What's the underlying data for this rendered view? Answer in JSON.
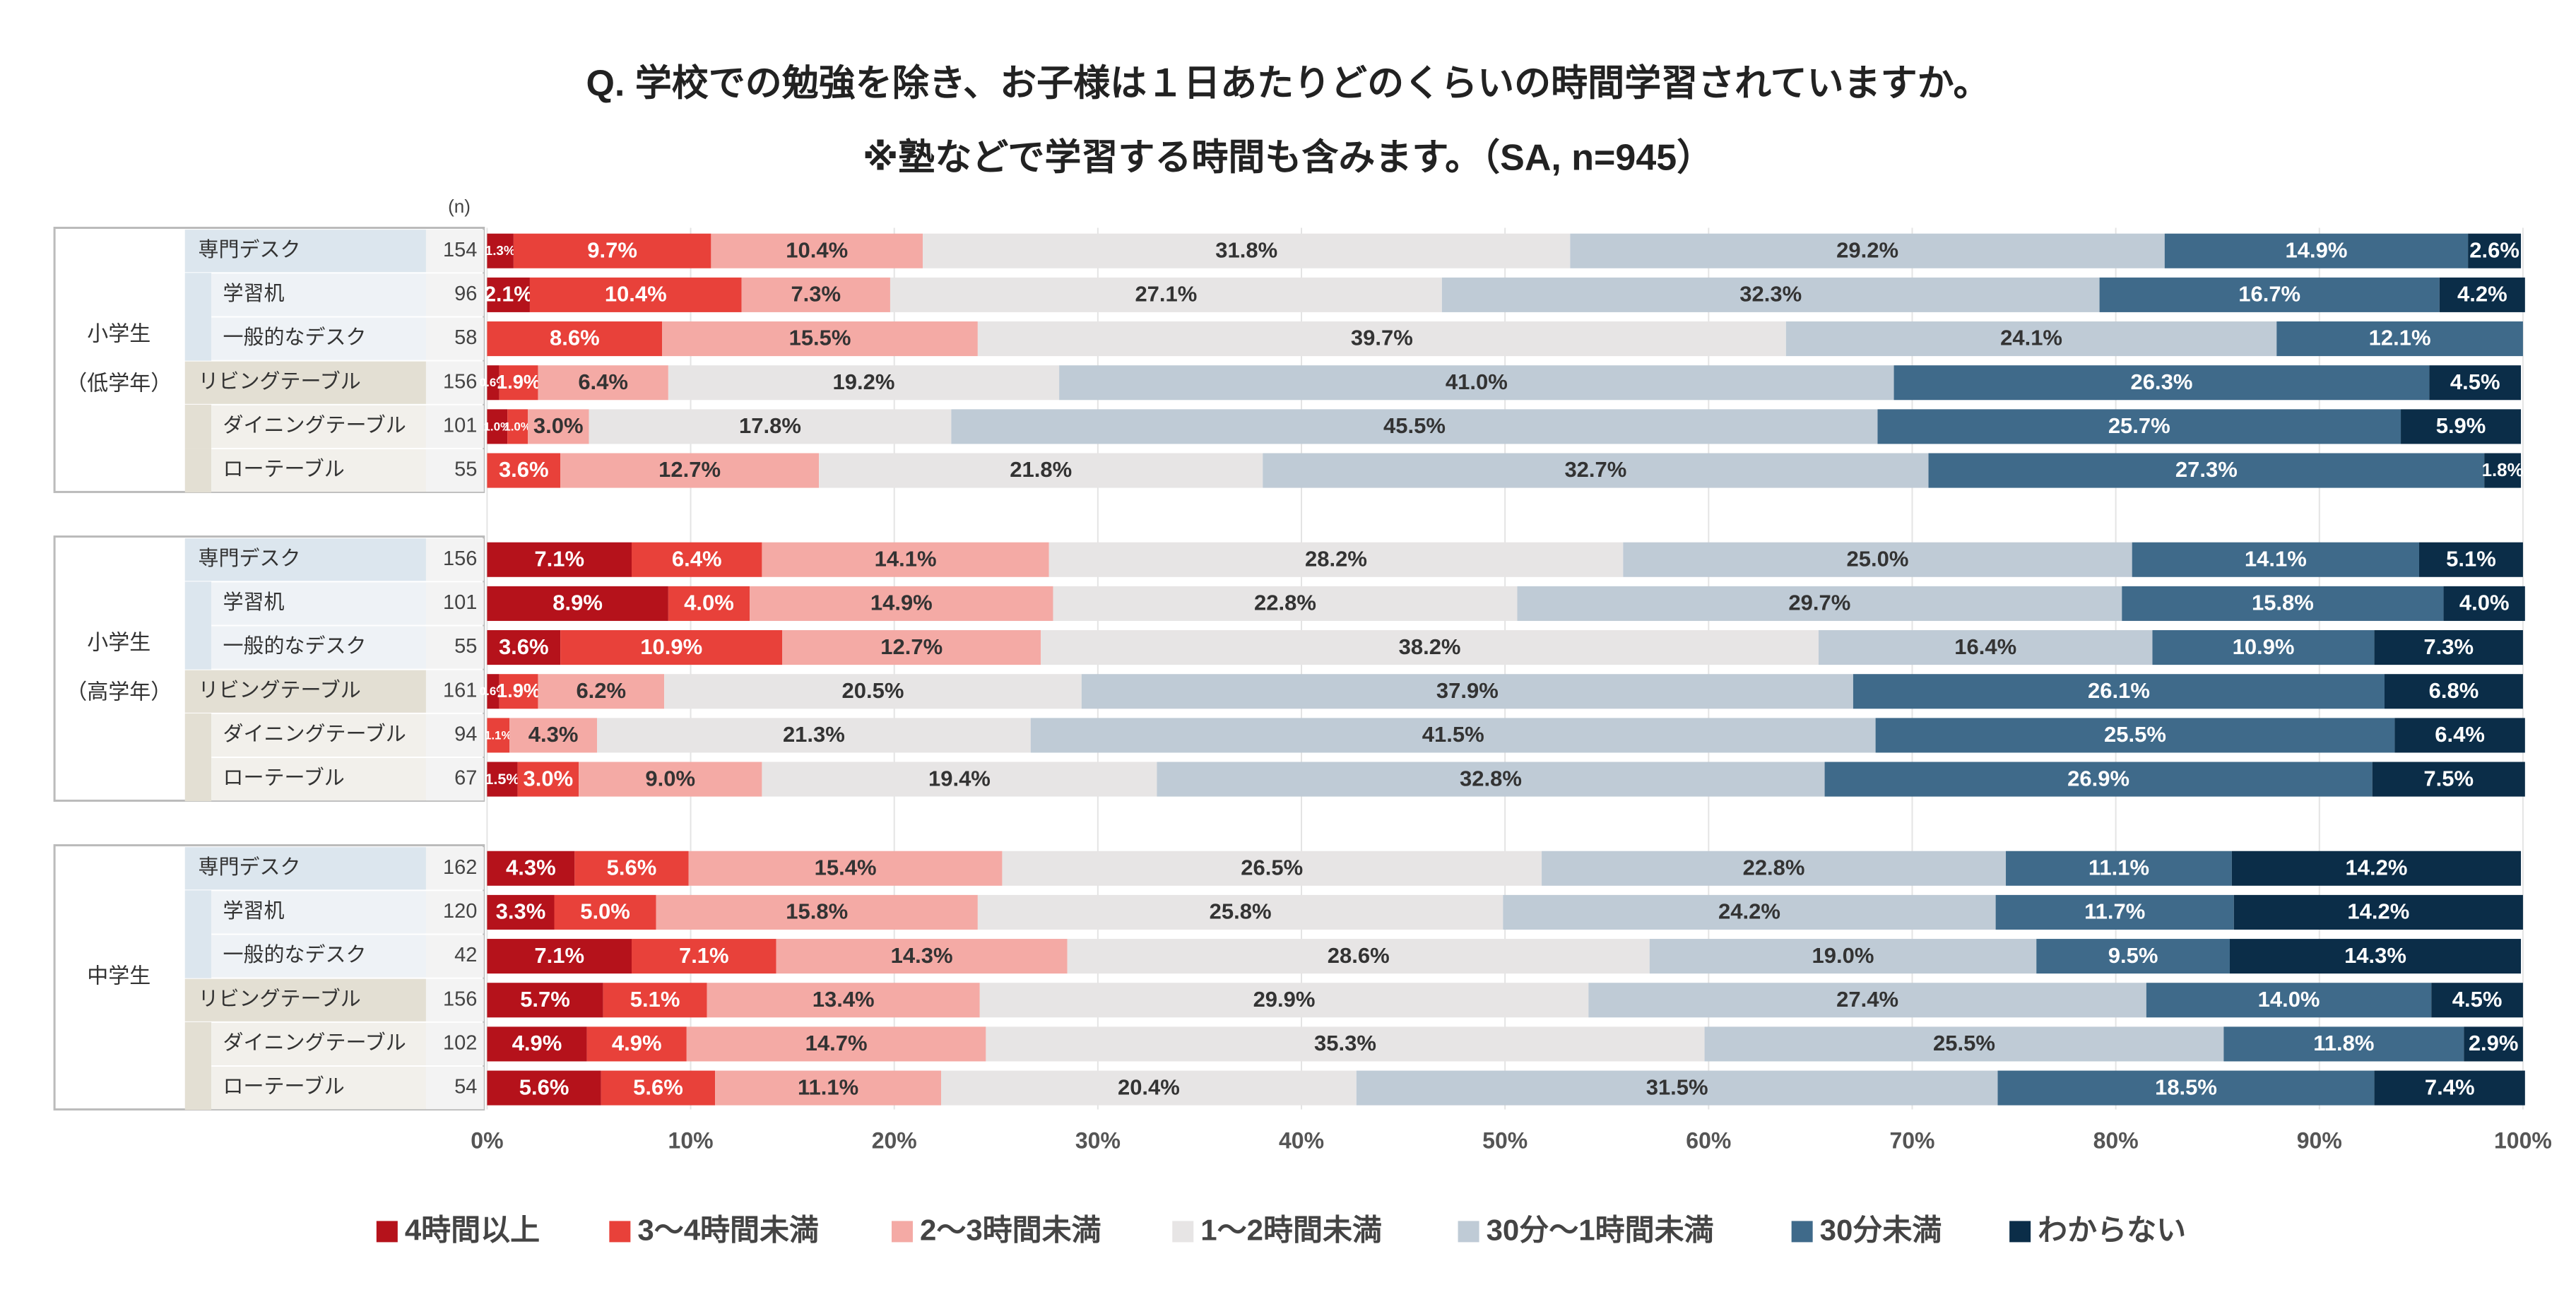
{
  "chart_data": {
    "type": "stacked_bar_horizontal",
    "title": "Q. 学校での勉強を除き、お子様は１日あたりどのくらいの時間学習されていますか。",
    "subtitle": "※塾などで学習する時間も含みます。（SA, n=945）",
    "n_header": "(n)",
    "groups": [
      {
        "label": [
          "小学生",
          "（低学年）"
        ],
        "categories": [
          "専門デスク",
          "学習机",
          "一般的なデスク",
          "リビングテーブル",
          "ダイニングテーブル",
          "ローテーブル"
        ],
        "n": [
          154,
          96,
          58,
          156,
          101,
          55
        ]
      },
      {
        "label": [
          "小学生",
          "（高学年）"
        ],
        "categories": [
          "専門デスク",
          "学習机",
          "一般的なデスク",
          "リビングテーブル",
          "ダイニングテーブル",
          "ローテーブル"
        ],
        "n": [
          156,
          101,
          55,
          161,
          94,
          67
        ]
      },
      {
        "label": [
          "中学生"
        ],
        "categories": [
          "専門デスク",
          "学習机",
          "一般的なデスク",
          "リビングテーブル",
          "ダイニングテーブル",
          "ローテーブル"
        ],
        "n": [
          162,
          120,
          42,
          156,
          102,
          54
        ]
      }
    ],
    "series": [
      {
        "name": "4時間以上",
        "color": "#b5121b",
        "values": [
          1.3,
          2.1,
          0,
          0.6,
          1.0,
          0,
          7.1,
          8.9,
          3.6,
          0.6,
          0,
          1.5,
          4.3,
          3.3,
          7.1,
          5.7,
          4.9,
          5.6
        ],
        "value_labels": [
          "1.3%",
          "2.1%",
          null,
          "0.6%",
          "1.0%",
          null,
          "7.1%",
          "8.9%",
          "3.6%",
          "0.6%",
          null,
          "1.5%",
          "4.3%",
          "3.3%",
          "7.1%",
          "5.7%",
          "4.9%",
          "5.6%"
        ]
      },
      {
        "name": "3〜4時間未満",
        "color": "#e8413a",
        "values": [
          9.7,
          10.4,
          8.6,
          1.9,
          1.0,
          3.6,
          6.4,
          4.0,
          10.9,
          1.9,
          1.1,
          3.0,
          5.6,
          5.0,
          7.1,
          5.1,
          4.9,
          5.6
        ],
        "value_labels": [
          "9.7%",
          "10.4%",
          "8.6%",
          "1.9%",
          "1.0%",
          "3.6%",
          "6.4%",
          "4.0%",
          "10.9%",
          "1.9%",
          "1.1%",
          "3.0%",
          "5.6%",
          "5.0%",
          "7.1%",
          "5.1%",
          "4.9%",
          "5.6%"
        ]
      },
      {
        "name": "2〜3時間未満",
        "color": "#f4aaa5",
        "values": [
          10.4,
          7.3,
          15.5,
          6.4,
          3.0,
          12.7,
          14.1,
          14.9,
          12.7,
          6.2,
          4.3,
          9.0,
          15.4,
          15.8,
          14.3,
          13.4,
          14.7,
          11.1
        ],
        "value_labels": [
          "10.4%",
          "7.3%",
          "15.5%",
          "6.4%",
          "3.0%",
          "12.7%",
          "14.1%",
          "14.9%",
          "12.7%",
          "6.2%",
          "4.3%",
          "9.0%",
          "15.4%",
          "15.8%",
          "14.3%",
          "13.4%",
          "14.7%",
          "11.1%"
        ]
      },
      {
        "name": "1〜2時間未満",
        "color": "#e7e5e5",
        "values": [
          31.8,
          27.1,
          39.7,
          19.2,
          17.8,
          21.8,
          28.2,
          22.8,
          38.2,
          20.5,
          21.3,
          19.4,
          26.5,
          25.8,
          28.6,
          29.9,
          35.3,
          20.4
        ],
        "value_labels": [
          "31.8%",
          "27.1%",
          "39.7%",
          "19.2%",
          "17.8%",
          "21.8%",
          "28.2%",
          "22.8%",
          "38.2%",
          "20.5%",
          "21.3%",
          "19.4%",
          "26.5%",
          "25.8%",
          "28.6%",
          "29.9%",
          "35.3%",
          "20.4%"
        ]
      },
      {
        "name": "30分〜1時間未満",
        "color": "#bfcbd6",
        "values": [
          29.2,
          32.3,
          24.1,
          41.0,
          45.5,
          32.7,
          25.0,
          29.7,
          16.4,
          37.9,
          41.5,
          32.8,
          22.8,
          24.2,
          19.0,
          27.4,
          25.5,
          31.5
        ],
        "value_labels": [
          "29.2%",
          "32.3%",
          "24.1%",
          "41.0%",
          "45.5%",
          "32.7%",
          "25.0%",
          "29.7%",
          "16.4%",
          "37.9%",
          "41.5%",
          "32.8%",
          "22.8%",
          "24.2%",
          "19.0%",
          "27.4%",
          "25.5%",
          "31.5%"
        ]
      },
      {
        "name": "30分未満",
        "color": "#3f6a8a",
        "values": [
          14.9,
          16.7,
          12.1,
          26.3,
          25.7,
          27.3,
          14.1,
          15.8,
          10.9,
          26.1,
          25.5,
          26.9,
          11.1,
          11.7,
          9.5,
          14.0,
          11.8,
          18.5
        ],
        "value_labels": [
          "14.9%",
          "16.7%",
          "12.1%",
          "26.3%",
          "25.7%",
          "27.3%",
          "14.1%",
          "15.8%",
          "10.9%",
          "26.1%",
          "25.5%",
          "26.9%",
          "11.1%",
          "11.7%",
          "9.5%",
          "14.0%",
          "11.8%",
          "18.5%"
        ]
      },
      {
        "name": "わからない",
        "color": "#0b2d48",
        "values": [
          2.6,
          4.2,
          0,
          4.5,
          5.9,
          1.8,
          5.1,
          4.0,
          7.3,
          6.8,
          6.4,
          7.5,
          14.2,
          14.2,
          14.3,
          4.5,
          2.9,
          7.4
        ],
        "value_labels": [
          "2.6%",
          "4.2%",
          null,
          "4.5%",
          "5.9%",
          "1.8%",
          "5.1%",
          "4.0%",
          "7.3%",
          "6.8%",
          "6.4%",
          "7.5%",
          "14.2%",
          "14.2%",
          "14.3%",
          "4.5%",
          "2.9%",
          "7.4%"
        ]
      }
    ],
    "xlim": [
      0,
      100
    ],
    "xticks": [
      {
        "value": 0,
        "label": "0%"
      },
      {
        "value": 10,
        "label": "10%"
      },
      {
        "value": 20,
        "label": "20%"
      },
      {
        "value": 30,
        "label": "30%"
      },
      {
        "value": 40,
        "label": "40%"
      },
      {
        "value": 50,
        "label": "50%"
      },
      {
        "value": 60,
        "label": "60%"
      },
      {
        "value": 70,
        "label": "70%"
      },
      {
        "value": 80,
        "label": "80%"
      },
      {
        "value": 90,
        "label": "90%"
      },
      {
        "value": 100,
        "label": "100%"
      }
    ],
    "grid": true
  }
}
